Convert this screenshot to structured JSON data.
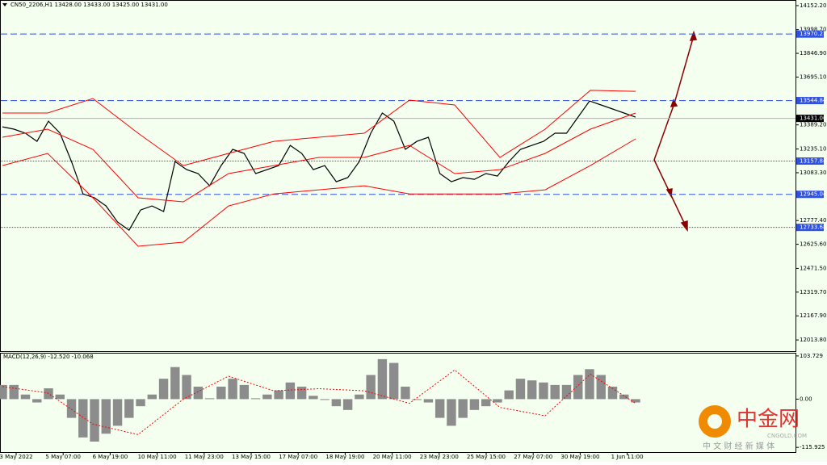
{
  "chart_data": [
    {
      "type": "line",
      "title": "CN50_2206,H1  13428.00 13433.00 13425.00 13431.00",
      "x_labels": [
        "3 May 2022",
        "5 May 07:00",
        "6 May 19:00",
        "10 May 11:00",
        "11 May 23:00",
        "13 May 15:00",
        "17 May 07:00",
        "18 May 19:00",
        "20 May 11:00",
        "23 May 23:00",
        "25 May 15:00",
        "27 May 07:00",
        "30 May 19:00",
        "1 Jun 11:00"
      ],
      "series": [
        {
          "color": "#000000",
          "values": [
            13377,
            13362,
            13336,
            13284,
            13413,
            13336,
            13155,
            12948,
            12923,
            12871,
            12768,
            12716,
            12845,
            12871,
            12835,
            13155,
            13103,
            13078,
            13000,
            13129,
            13233,
            13207,
            13078,
            13103,
            13129,
            13258,
            13207,
            13103,
            13129,
            13026,
            13052,
            13155,
            13336,
            13465,
            13413,
            13233,
            13284,
            13310,
            13078,
            13026,
            13052,
            13041,
            13078,
            13062,
            13155,
            13233,
            13258,
            13284,
            13336,
            13336,
            13439,
            13542,
            13517,
            13491,
            13465,
            13439
          ]
        },
        {
          "color": "#ff0000",
          "values": [
            13465,
            13465,
            13558,
            13336,
            13129,
            13207,
            13284,
            13310,
            13336,
            13548,
            13517,
            13181,
            13362,
            13610,
            13604
          ]
        },
        {
          "color": "#ff0000",
          "values": [
            13310,
            13362,
            13233,
            12923,
            12897,
            13078,
            13129,
            13181,
            13181,
            13258,
            13078,
            13103,
            13207,
            13362,
            13465
          ]
        },
        {
          "color": "#ff0000",
          "values": [
            13129,
            13207,
            12923,
            12613,
            12639,
            12871,
            12948,
            12974,
            13000,
            12948,
            12948,
            12948,
            12974,
            13129,
            13300
          ]
        }
      ],
      "levels": [
        {
          "value": 13970.21,
          "style": "dashed"
        },
        {
          "value": 13544.84,
          "style": "dashed"
        },
        {
          "value": 13431,
          "label": "13431.00",
          "style": "current"
        },
        {
          "value": 13157.84,
          "style": "dotted"
        },
        {
          "value": 12945.04,
          "style": "dashed"
        },
        {
          "value": 12733.68,
          "style": "dotted"
        }
      ],
      "ylim": [
        11942,
        14188
      ],
      "yticks": [
        {
          "value": 14152.2,
          "label": "14152.20"
        },
        {
          "value": 13998.7,
          "label": "13998.70"
        },
        {
          "value": 13846.9,
          "label": "13846.90"
        },
        {
          "value": 13695.1,
          "label": "13695.10"
        },
        {
          "value": 13389.2,
          "label": "13389.20"
        },
        {
          "value": 13235.1,
          "label": "13235.10"
        },
        {
          "value": 13083.3,
          "label": "13083.30"
        },
        {
          "value": 12777.4,
          "label": "12777.40"
        },
        {
          "value": 12625.6,
          "label": "12625.60"
        },
        {
          "value": 12471.5,
          "label": "12471.50"
        },
        {
          "value": 12319.7,
          "label": "12319.70"
        },
        {
          "value": 12167.9,
          "label": "12167.90"
        },
        {
          "value": 12013.8,
          "label": "12013.80"
        }
      ]
    },
    {
      "type": "bar",
      "title": "MACD(12,26,9) -12.520 -10.068",
      "values": [
        34,
        34,
        11,
        -8,
        26,
        11,
        -45,
        -92,
        -102,
        -83,
        -64,
        -45,
        -17,
        11,
        49,
        77,
        58,
        30,
        2,
        30,
        49,
        34,
        2,
        11,
        21,
        40,
        30,
        8,
        -2,
        -17,
        -26,
        11,
        58,
        96,
        87,
        30,
        -2,
        -8,
        -45,
        -64,
        -45,
        -26,
        -17,
        -8,
        21,
        49,
        45,
        40,
        34,
        34,
        58,
        72,
        58,
        30,
        11,
        -8
      ],
      "color": "#8c8c8c",
      "signal": {
        "color": "#ff0000",
        "values": [
          30,
          15,
          -60,
          -85,
          0,
          55,
          20,
          25,
          20,
          -10,
          70,
          -20,
          -40,
          60,
          -10
        ]
      },
      "ylim": [
        -129.1,
        111.3
      ],
      "yticks": [
        103.729,
        {
          "value": 0,
          "label": "0.00"
        },
        -115.925
      ]
    }
  ],
  "watermark": {
    "brand": "中金网",
    "site": "CNGOLD.COM",
    "slogan": "中 文 财 经 新 媒 体"
  }
}
